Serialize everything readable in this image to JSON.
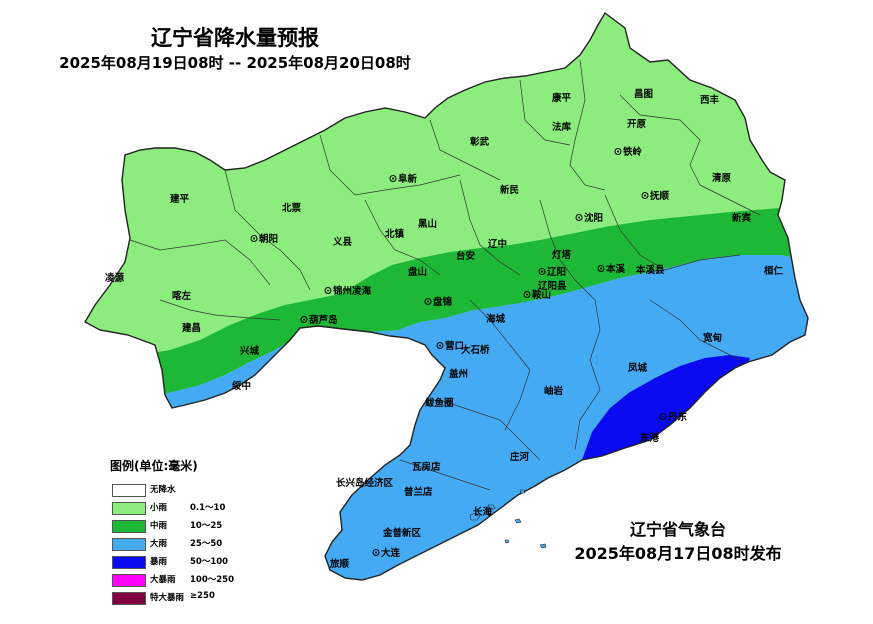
{
  "title": "辽宁省降水量预报",
  "period": "2025年08月19日08时 -- 2025年08月20日08时",
  "issuer": {
    "name": "辽宁省气象台",
    "time": "2025年08月17日08时发布"
  },
  "legend": {
    "title": "图例(单位:毫米)",
    "items": [
      {
        "label": "无降水",
        "range": "",
        "color": "#ffffff"
      },
      {
        "label": "小雨",
        "range": "0.1～10",
        "color": "#8ced7e"
      },
      {
        "label": "中雨",
        "range": "10～25",
        "color": "#1db936"
      },
      {
        "label": "大雨",
        "range": "25～50",
        "color": "#44aaf4"
      },
      {
        "label": "暴雨",
        "range": "50～100",
        "color": "#0a0af0"
      },
      {
        "label": "大暴雨",
        "range": "100～250",
        "color": "#ff00ff"
      },
      {
        "label": "特大暴雨",
        "range": "≥250",
        "color": "#800040"
      }
    ]
  },
  "cities": [
    {
      "id": "changtu",
      "name": "昌图"
    },
    {
      "id": "xifeng",
      "name": "西丰"
    },
    {
      "id": "kangping",
      "name": "康平"
    },
    {
      "id": "faku",
      "name": "法库"
    },
    {
      "id": "kaiyuan",
      "name": "开原"
    },
    {
      "id": "tieling",
      "name": "铁岭"
    },
    {
      "id": "zhangwu",
      "name": "彰武"
    },
    {
      "id": "fuxin",
      "name": "阜新"
    },
    {
      "id": "xinmin",
      "name": "新民"
    },
    {
      "id": "shenyang",
      "name": "沈阳"
    },
    {
      "id": "fushun",
      "name": "抚顺"
    },
    {
      "id": "qingyuan",
      "name": "清原"
    },
    {
      "id": "xinbin",
      "name": "新宾"
    },
    {
      "id": "jianping",
      "name": "建平"
    },
    {
      "id": "beipiao",
      "name": "北票"
    },
    {
      "id": "chaoyang",
      "name": "朝阳"
    },
    {
      "id": "yixian",
      "name": "义县"
    },
    {
      "id": "beizhen",
      "name": "北镇"
    },
    {
      "id": "heishan",
      "name": "黑山"
    },
    {
      "id": "taian",
      "name": "台安"
    },
    {
      "id": "liaozhong",
      "name": "辽中"
    },
    {
      "id": "dengta",
      "name": "灯塔"
    },
    {
      "id": "liaoyang",
      "name": "辽阳"
    },
    {
      "id": "liaoyangxian",
      "name": "辽阳县"
    },
    {
      "id": "benxi",
      "name": "本溪"
    },
    {
      "id": "benxixian",
      "name": "本溪县"
    },
    {
      "id": "huanren",
      "name": "桓仁"
    },
    {
      "id": "anshan",
      "name": "鞍山"
    },
    {
      "id": "lingyuan",
      "name": "凌源"
    },
    {
      "id": "kazuo",
      "name": "喀左"
    },
    {
      "id": "jinzhou",
      "name": "锦州凌海"
    },
    {
      "id": "panshan",
      "name": "盘山"
    },
    {
      "id": "panjin",
      "name": "盘锦"
    },
    {
      "id": "jianchang",
      "name": "建昌"
    },
    {
      "id": "huludao",
      "name": "葫芦岛"
    },
    {
      "id": "xingcheng",
      "name": "兴城"
    },
    {
      "id": "suizhong",
      "name": "绥中"
    },
    {
      "id": "haicheng",
      "name": "海城"
    },
    {
      "id": "yingkou",
      "name": "营口"
    },
    {
      "id": "dashiqiao",
      "name": "大石桥"
    },
    {
      "id": "gaizhou",
      "name": "盖州"
    },
    {
      "id": "bayuquan",
      "name": "鲅鱼圈"
    },
    {
      "id": "xiuyan",
      "name": "岫岩"
    },
    {
      "id": "kuandian",
      "name": "宽甸"
    },
    {
      "id": "fengcheng",
      "name": "凤城"
    },
    {
      "id": "dandong",
      "name": "丹东"
    },
    {
      "id": "donggang",
      "name": "东港"
    },
    {
      "id": "zhuanghe",
      "name": "庄河"
    },
    {
      "id": "wafangdian",
      "name": "瓦房店"
    },
    {
      "id": "changxing",
      "name": "长兴岛经济区"
    },
    {
      "id": "pulandian",
      "name": "普兰店"
    },
    {
      "id": "changhai",
      "name": "长海"
    },
    {
      "id": "jinpu",
      "name": "金普新区"
    },
    {
      "id": "dalian",
      "name": "大连"
    },
    {
      "id": "lvshun",
      "name": "旅顺"
    }
  ]
}
